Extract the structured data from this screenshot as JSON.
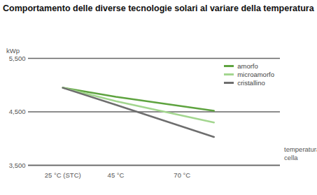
{
  "chart_data": {
    "type": "line",
    "title": "Comportamento delle diverse tecnologie solari al variare della temperatura",
    "y_label": "kWp",
    "x_label": "temperatura cella",
    "x": [
      25,
      45,
      82
    ],
    "series": [
      {
        "name": "amorfo",
        "color": "#5ea33f",
        "values": [
          4950,
          4780,
          4520
        ]
      },
      {
        "name": "microamorfo",
        "color": "#a3d68f",
        "values": [
          4950,
          4700,
          4300
        ]
      },
      {
        "name": "cristallino",
        "color": "#6e6e6e",
        "values": [
          4950,
          4630,
          4030
        ]
      }
    ],
    "xlim": [
      12,
      107
    ],
    "ylim": [
      3500,
      5500
    ],
    "xticks": [
      {
        "value": 25,
        "label": "25 °C (STC)"
      },
      {
        "value": 45,
        "label": "45 °C"
      },
      {
        "value": 70,
        "label": "70 °C"
      }
    ],
    "yticks": [
      {
        "value": 3500,
        "label": "3,500"
      },
      {
        "value": 4500,
        "label": "4,500"
      },
      {
        "value": 5500,
        "label": "5,500"
      }
    ],
    "grid": true,
    "legend": "top-right"
  }
}
